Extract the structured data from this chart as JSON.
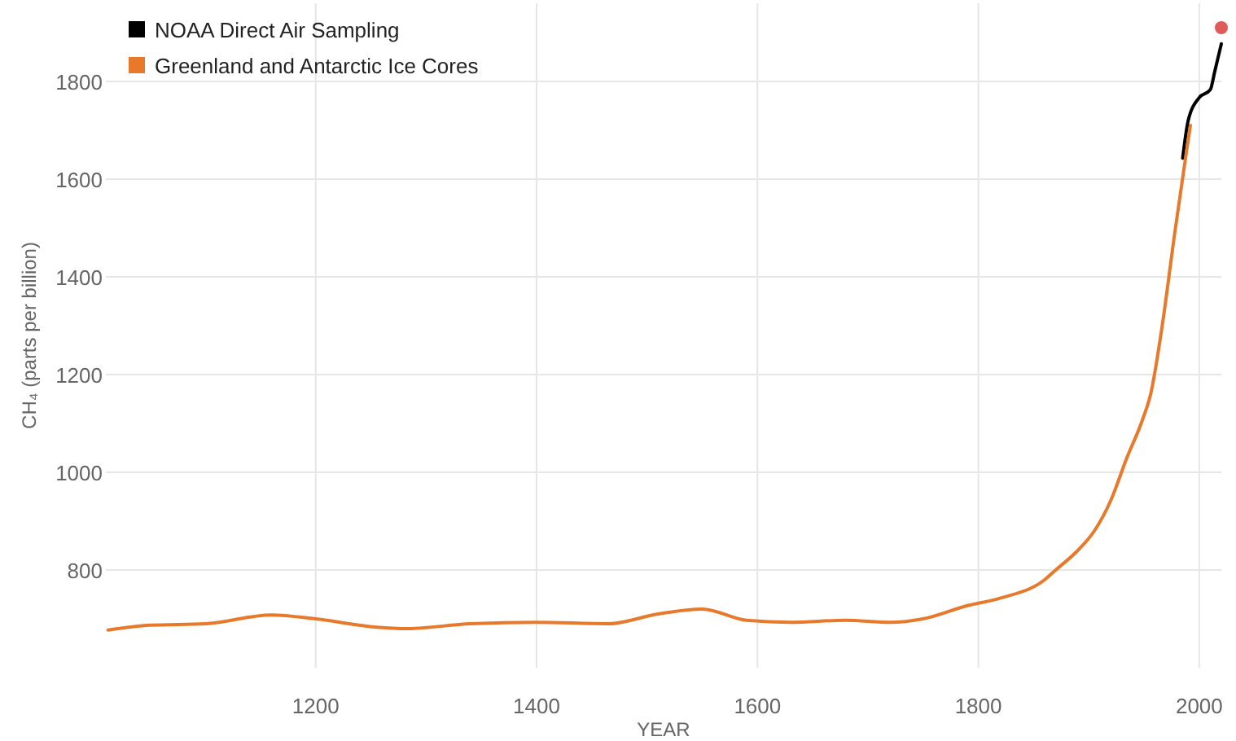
{
  "chart_data": {
    "type": "line",
    "xlabel": "YEAR",
    "ylabel": "CH₄ (parts per billion)",
    "xlim": [
      1010,
      2020
    ],
    "xticks": [
      1200,
      1400,
      1600,
      1800,
      2000
    ],
    "ylim": [
      600,
      1960
    ],
    "yticks": [
      800,
      1000,
      1200,
      1400,
      1600,
      1800
    ],
    "grid": true,
    "legend": "top left",
    "line_style": "solid",
    "marker": "none",
    "series": [
      {
        "name": "NOAA Direct Air Sampling",
        "color": "#000000",
        "x": [
          1985,
          1990,
          2000,
          2010,
          2014,
          2020
        ],
        "values": [
          1643,
          1720,
          1767,
          1783,
          1820,
          1877
        ]
      },
      {
        "name": "Greenland and Antarctic Ice Cores",
        "color": "#e8792b",
        "x": [
          1012,
          1050,
          1100,
          1160,
          1200,
          1255,
          1282,
          1340,
          1400,
          1465,
          1510,
          1550,
          1590,
          1630,
          1680,
          1720,
          1750,
          1790,
          1821,
          1860,
          1870,
          1890,
          1905,
          1920,
          1934,
          1949,
          1956,
          1966,
          1978,
          1988,
          1992
        ],
        "values": [
          677,
          687,
          690,
          708,
          700,
          683,
          680,
          690,
          693,
          690,
          710,
          720,
          697,
          693,
          697,
          693,
          700,
          727,
          743,
          780,
          800,
          840,
          880,
          943,
          1027,
          1110,
          1160,
          1293,
          1493,
          1650,
          1710
        ]
      },
      {
        "type": "scatter",
        "color": "#e05a5a",
        "marker": "circle",
        "x": [
          2020
        ],
        "values": [
          1910
        ]
      }
    ]
  }
}
